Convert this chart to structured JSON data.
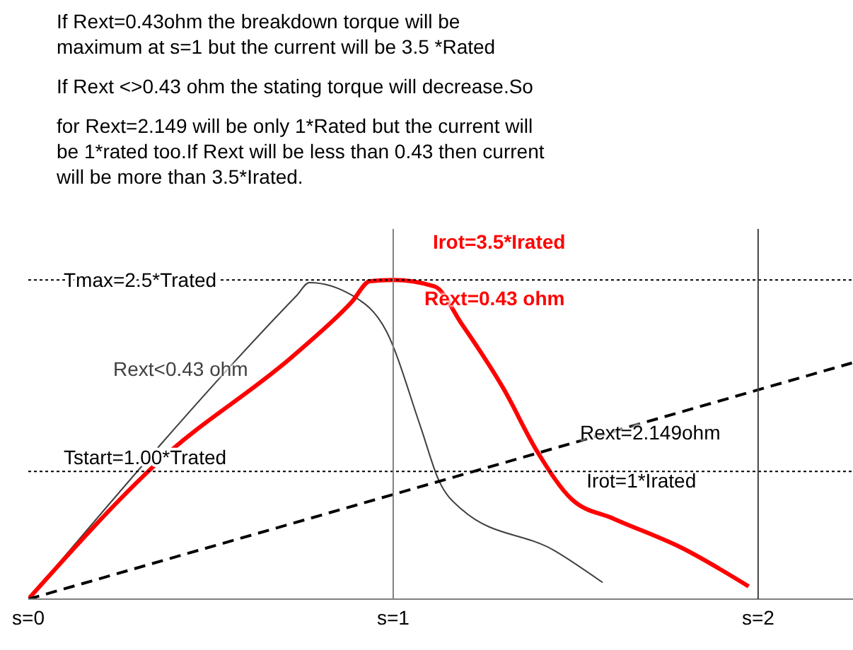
{
  "chart_data": {
    "type": "line",
    "annotations": [
      "If Rext=0.43ohm the breakdown torque will be maximum at s=1 but the current will be 3.5 *Rated",
      "If Rext <>0.43 ohm the stating torque will decrease.So",
      "for Rext=2.149 will be only 1*Rated but the current will be 1*rated too.If Rext will be less than 0.43 then current will be more than 3.5*Irated.",
      {
        "text": "Irot=3.5*Irated",
        "x": 1.0,
        "y": 2.5
      },
      {
        "text": "Irot=1*Irated",
        "x": 1.53,
        "y": 1.25
      }
    ],
    "xlim": [
      0,
      2.26
    ],
    "ylim": [
      0,
      2.9
    ],
    "tick_labels": "x",
    "xticks": [
      {
        "value": 0,
        "label": "s=0"
      },
      {
        "value": 1,
        "label": "s=1"
      },
      {
        "value": 2,
        "label": "s=2"
      }
    ],
    "series": [
      {
        "name": "Rext<0.43 ohm",
        "color": "#404040",
        "line_style": "solid",
        "x": [
          0,
          0.736,
          0.77,
          0.887,
          0.981,
          1.075,
          1.125,
          1.189,
          1.442,
          1.574
        ],
        "values": [
          0,
          2.38,
          2.48,
          2.38,
          2.1,
          1.35,
          0.93,
          0.7,
          0.38,
          0.13
        ]
      },
      {
        "name": "Rext=0.43 ohm",
        "color": "#ff0000",
        "line_style": "solid",
        "x": [
          0,
          0.358,
          0.736,
          0.887,
          0.936,
          1.0,
          1.113,
          1.189,
          1.302,
          1.396,
          1.49,
          1.604,
          1.792,
          1.974
        ],
        "values": [
          0,
          1.08,
          1.93,
          2.33,
          2.49,
          2.5,
          2.45,
          2.15,
          1.65,
          1.15,
          0.78,
          0.63,
          0.4,
          0.1
        ]
      },
      {
        "name": "Rext=2.149ohm",
        "color": "#000000",
        "line_style": "dashed",
        "x": [
          0,
          2.257
        ],
        "values": [
          0,
          1.85
        ]
      }
    ],
    "ref_lines": [
      {
        "axis": "y",
        "value": 2.5,
        "label": "Tmax=2.5*Trated",
        "color": "#000000",
        "line_style": "dotted"
      },
      {
        "axis": "y",
        "value": 1.0,
        "label": "Tstart=1.00*Trated",
        "color": "#000000",
        "line_style": "dotted"
      },
      {
        "axis": "x",
        "value": 1,
        "color": "#808080",
        "line_style": "solid"
      },
      {
        "axis": "x",
        "value": 2,
        "color": "#404040",
        "line_style": "solid"
      }
    ],
    "grid": false,
    "legend": false,
    "marker": "none"
  }
}
